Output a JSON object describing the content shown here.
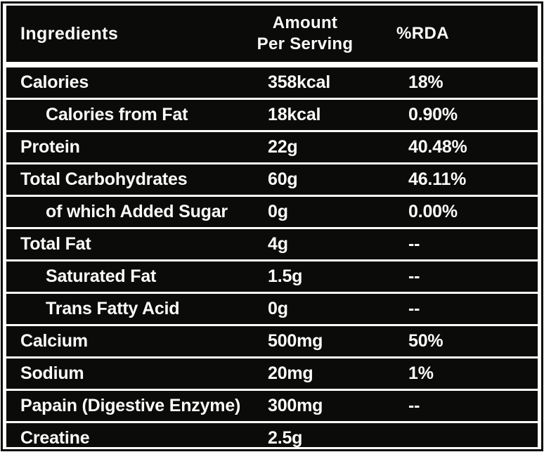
{
  "table": {
    "header": {
      "ingredients_label": "Ingredients",
      "amount_label_line1": "Amount",
      "amount_label_line2": "Per Serving",
      "rda_label": "%RDA"
    },
    "rows": [
      {
        "label": "Calories",
        "amount": "358kcal",
        "rda": "18%",
        "indent": false
      },
      {
        "label": "Calories from Fat",
        "amount": "18kcal",
        "rda": "0.90%",
        "indent": true
      },
      {
        "label": "Protein",
        "amount": "22g",
        "rda": "40.48%",
        "indent": false
      },
      {
        "label": "Total Carbohydrates",
        "amount": "60g",
        "rda": "46.11%",
        "indent": false
      },
      {
        "label": "of which Added Sugar",
        "amount": "0g",
        "rda": "0.00%",
        "indent": true
      },
      {
        "label": "Total Fat",
        "amount": "4g",
        "rda": "--",
        "indent": false
      },
      {
        "label": "Saturated Fat",
        "amount": "1.5g",
        "rda": "--",
        "indent": true
      },
      {
        "label": "Trans Fatty Acid",
        "amount": "0g",
        "rda": "--",
        "indent": true
      },
      {
        "label": "Calcium",
        "amount": "500mg",
        "rda": "50%",
        "indent": false
      },
      {
        "label": "Sodium",
        "amount": "20mg",
        "rda": "1%",
        "indent": false
      },
      {
        "label": "Papain (Digestive Enzyme)",
        "amount": "300mg",
        "rda": "--",
        "indent": false
      },
      {
        "label": "Creatine",
        "amount": "2.5g",
        "rda": "",
        "indent": false
      }
    ]
  },
  "colors": {
    "table_black": "#0b0b09",
    "text_white": "#fbfbfb",
    "background": "#ffffff"
  }
}
